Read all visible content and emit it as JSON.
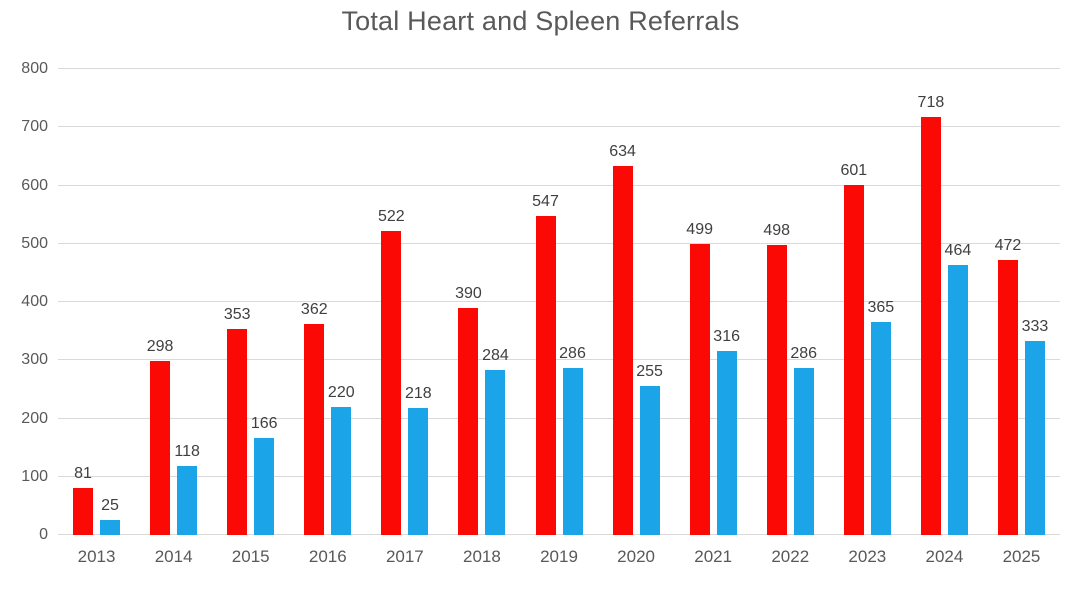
{
  "chart_data": {
    "type": "bar",
    "title": "Total Heart and Spleen Referrals",
    "categories": [
      "2013",
      "2014",
      "2015",
      "2016",
      "2017",
      "2018",
      "2019",
      "2020",
      "2021",
      "2022",
      "2023",
      "2024",
      "2025"
    ],
    "series": [
      {
        "id": "series-red",
        "color": "#fb0905",
        "values": [
          81,
          298,
          353,
          362,
          522,
          390,
          547,
          634,
          499,
          498,
          601,
          718,
          472
        ]
      },
      {
        "id": "series-blue",
        "color": "#1ca4e8",
        "values": [
          25,
          118,
          166,
          220,
          218,
          284,
          286,
          255,
          316,
          286,
          365,
          464,
          333
        ]
      }
    ],
    "xlabel": "",
    "ylabel": "",
    "ylim": [
      0,
      800
    ],
    "yticks": [
      0,
      100,
      200,
      300,
      400,
      500,
      600,
      700,
      800
    ],
    "grid": true,
    "legend": false,
    "data_labels": true,
    "colors": {
      "gridline": "#d9d9d9",
      "axis_text": "#595959",
      "data_label_text": "#404040",
      "title_text": "#595959",
      "background": "#ffffff"
    }
  }
}
